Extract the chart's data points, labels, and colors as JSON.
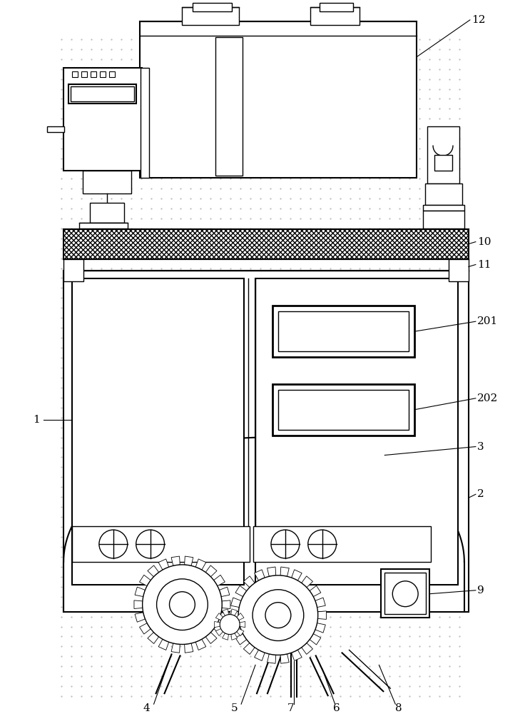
{
  "bg_color": "#ffffff",
  "line_color": "#000000",
  "label_color": "#000000",
  "dot_color": "#bbbbbb",
  "label_fs": 11,
  "lw": 1.0,
  "lw2": 1.5,
  "lw3": 2.0
}
